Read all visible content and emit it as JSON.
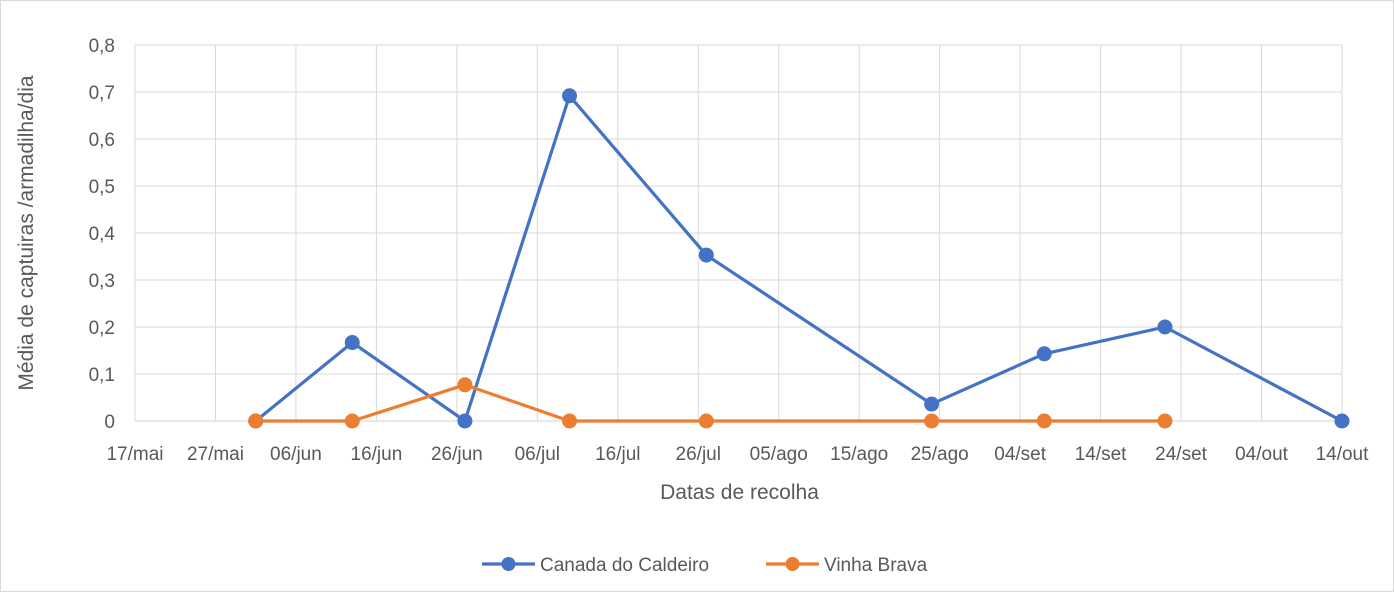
{
  "chart_data": {
    "type": "line",
    "xlabel": "Datas de recolha",
    "ylabel": "Média de captuiras /armadilha/dia",
    "ylim": [
      0,
      0.8
    ],
    "xlim": [
      "2000-05-17",
      "2000-10-14"
    ],
    "grid": true,
    "legend_position": "bottom",
    "y_ticks": [
      "0",
      "0,1",
      "0,2",
      "0,3",
      "0,4",
      "0,5",
      "0,6",
      "0,7",
      "0,8"
    ],
    "x_ticks": [
      "17/mai",
      "27/mai",
      "06/jun",
      "16/jun",
      "26/jun",
      "06/jul",
      "16/jul",
      "26/jul",
      "05/ago",
      "15/ago",
      "25/ago",
      "04/set",
      "14/set",
      "24/set",
      "04/out",
      "14/out"
    ],
    "series": [
      {
        "name": "Canada do Caldeiro",
        "color": "#4472C4",
        "points": [
          {
            "x": "2000-06-01",
            "y": 0
          },
          {
            "x": "2000-06-13",
            "y": 0.167
          },
          {
            "x": "2000-06-27",
            "y": 0
          },
          {
            "x": "2000-07-10",
            "y": 0.692
          },
          {
            "x": "2000-07-27",
            "y": 0.353
          },
          {
            "x": "2000-08-24",
            "y": 0.036
          },
          {
            "x": "2000-09-07",
            "y": 0.143
          },
          {
            "x": "2000-09-22",
            "y": 0.2
          },
          {
            "x": "2000-10-14",
            "y": 0
          }
        ]
      },
      {
        "name": "Vinha Brava",
        "color": "#ED7D31",
        "points": [
          {
            "x": "2000-06-01",
            "y": 0
          },
          {
            "x": "2000-06-13",
            "y": 0
          },
          {
            "x": "2000-06-27",
            "y": 0.077
          },
          {
            "x": "2000-07-10",
            "y": 0
          },
          {
            "x": "2000-07-27",
            "y": 0
          },
          {
            "x": "2000-08-24",
            "y": 0
          },
          {
            "x": "2000-09-07",
            "y": 0
          },
          {
            "x": "2000-09-22",
            "y": 0
          }
        ]
      }
    ]
  }
}
